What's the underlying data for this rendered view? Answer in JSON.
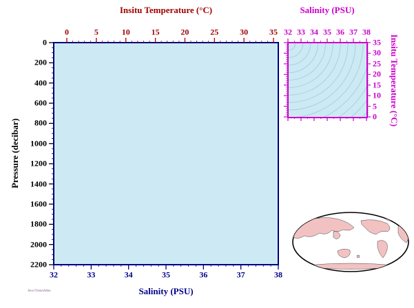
{
  "page": {
    "background": "#FFFFFF"
  },
  "stamp": {
    "text": "Java OceanAtlas"
  },
  "chart_data": [
    {
      "id": "profile-plot",
      "type": "scatter",
      "title": "",
      "series": [],
      "plot_bg": "#CDE9F3",
      "frame_color": "#000080",
      "grid": false,
      "x_axis_top": {
        "label": "Insitu Temperature (°C)",
        "min": 0,
        "max": 35,
        "ticks": [
          0,
          5,
          10,
          15,
          20,
          25,
          30,
          35
        ],
        "color": "#A00000"
      },
      "x_axis_bottom": {
        "label": "Salinity (PSU)",
        "min": 32,
        "max": 38,
        "ticks": [
          32,
          33,
          34,
          35,
          36,
          37,
          38
        ],
        "color": "#00008B"
      },
      "y_axis_left": {
        "label": "Pressure (decibar)",
        "min": 0,
        "max": 2200,
        "inverted": true,
        "ticks": [
          0,
          200,
          400,
          600,
          800,
          1000,
          1200,
          1400,
          1600,
          1800,
          2000,
          2200
        ],
        "color": "#000000"
      }
    },
    {
      "id": "ts-diagram",
      "type": "line",
      "title": "",
      "series": [],
      "plot_bg": "#CDE9F3",
      "frame_color": "#CC00CC",
      "background_contours": "isopycnals",
      "contour_count": 14,
      "contour_color": "#9CD0E2",
      "x_axis_top": {
        "label": "Salinity (PSU)",
        "min": 32,
        "max": 38,
        "ticks": [
          32,
          33,
          34,
          35,
          36,
          37,
          38
        ],
        "color": "#CC00CC"
      },
      "y_axis_right": {
        "label": "Insitu Temperature (°C)",
        "min": 0,
        "max": 35,
        "ticks": [
          0,
          5,
          10,
          15,
          20,
          25,
          30,
          35
        ],
        "color": "#CC00CC"
      }
    }
  ],
  "map": {
    "name": "world-map",
    "projection": "oval (Pacific-centered)",
    "land_color": "#F2C2C2",
    "ocean_color": "#FFFFFF",
    "outline_color": "#000000"
  }
}
